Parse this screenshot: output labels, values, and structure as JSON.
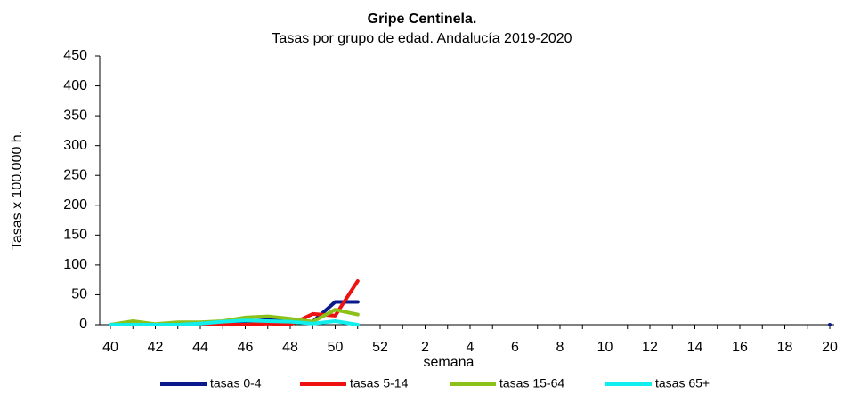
{
  "chart_data": {
    "type": "line",
    "title": "Gripe Centinela.",
    "subtitle": "Tasas por grupo de edad. Andalucía 2019-2020",
    "y_label": "Tasas x 100.000 h.",
    "x_label": "semana",
    "categories": [
      "40",
      null,
      "42",
      null,
      "44",
      null,
      "46",
      null,
      "48",
      null,
      "50",
      null,
      "52",
      null,
      "2",
      null,
      "4",
      null,
      "6",
      null,
      "8",
      null,
      "10",
      null,
      "12",
      null,
      "14",
      null,
      "16",
      null,
      "18",
      null,
      "20"
    ],
    "ylim": [
      0,
      450
    ],
    "yticks": [
      0,
      50,
      100,
      150,
      200,
      250,
      300,
      350,
      400,
      450
    ],
    "legend": "bottom",
    "series": [
      {
        "name": "tasas 0-4",
        "color": "#0a1a8c",
        "values": [
          0,
          2,
          0,
          1,
          2,
          3,
          5,
          8,
          6,
          5,
          38,
          38,
          null,
          null,
          null,
          null,
          null,
          null,
          null,
          null,
          null,
          null,
          null,
          null,
          null,
          null,
          null,
          null,
          null,
          null,
          null,
          null,
          0
        ]
      },
      {
        "name": "tasas 5-14",
        "color": "#ee1111",
        "values": [
          0,
          0,
          0,
          0,
          0,
          0,
          0,
          2,
          0,
          18,
          15,
          73,
          null,
          null,
          null,
          null,
          null,
          null,
          null,
          null,
          null,
          null,
          null,
          null,
          null,
          null,
          null,
          null,
          null,
          null,
          null,
          null,
          null
        ]
      },
      {
        "name": "tasas 15-64",
        "color": "#8cc11a",
        "values": [
          0,
          6,
          1,
          4,
          4,
          6,
          12,
          14,
          10,
          5,
          25,
          17,
          null,
          null,
          null,
          null,
          null,
          null,
          null,
          null,
          null,
          null,
          null,
          null,
          null,
          null,
          null,
          null,
          null,
          null,
          null,
          null,
          null
        ]
      },
      {
        "name": "tasas 65+",
        "color": "#11eeee",
        "values": [
          0,
          0,
          0,
          0,
          2,
          5,
          7,
          6,
          5,
          2,
          6,
          0,
          null,
          null,
          null,
          null,
          null,
          null,
          null,
          null,
          null,
          null,
          null,
          null,
          null,
          null,
          null,
          null,
          null,
          null,
          null,
          null,
          null
        ]
      }
    ]
  }
}
